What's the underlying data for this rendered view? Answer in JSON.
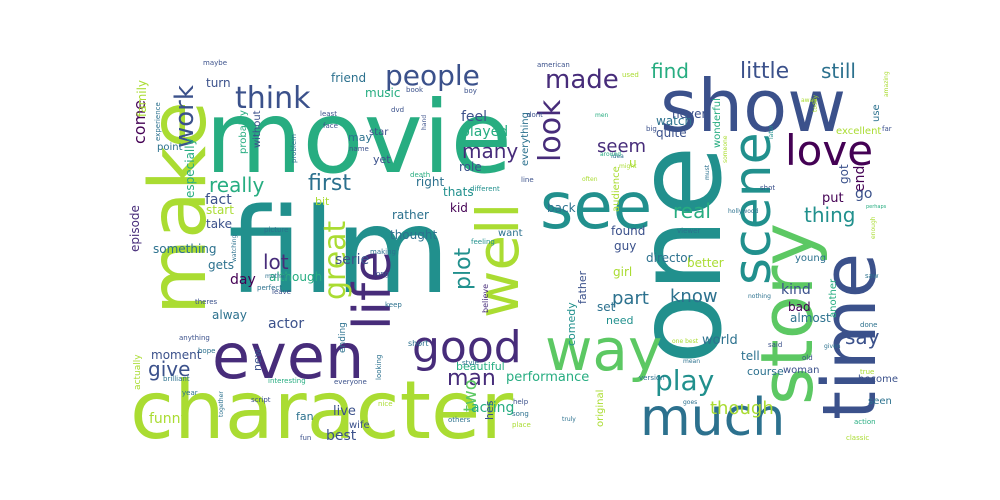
{
  "colors": {
    "c1": "#440154",
    "c2": "#472c7a",
    "c3": "#3b518b",
    "c4": "#2c718e",
    "c5": "#21908d",
    "c6": "#27ad81",
    "c7": "#5cc863",
    "c8": "#aadc32",
    "c9": "#fde725",
    "background": "#ffffff"
  },
  "words": [
    {
      "text": "movie"
    },
    {
      "text": "film"
    },
    {
      "text": "one"
    },
    {
      "text": "show"
    },
    {
      "text": "character"
    },
    {
      "text": "make"
    },
    {
      "text": "time"
    },
    {
      "text": "story"
    },
    {
      "text": "even"
    },
    {
      "text": "see"
    },
    {
      "text": "way"
    },
    {
      "text": "scene"
    },
    {
      "text": "much"
    },
    {
      "text": "well"
    },
    {
      "text": "life"
    },
    {
      "text": "love"
    },
    {
      "text": "good"
    },
    {
      "text": "people"
    },
    {
      "text": "think"
    },
    {
      "text": "made"
    },
    {
      "text": "look"
    },
    {
      "text": "great"
    },
    {
      "text": "work"
    },
    {
      "text": "play"
    },
    {
      "text": "little"
    },
    {
      "text": "really"
    },
    {
      "text": "still"
    },
    {
      "text": "first"
    },
    {
      "text": "find"
    },
    {
      "text": "many"
    },
    {
      "text": "seem"
    },
    {
      "text": "real"
    },
    {
      "text": "thing"
    },
    {
      "text": "lot"
    },
    {
      "text": "plot"
    },
    {
      "text": "know"
    },
    {
      "text": "part"
    },
    {
      "text": "say"
    },
    {
      "text": "give"
    },
    {
      "text": "man"
    },
    {
      "text": "two"
    },
    {
      "text": "though"
    },
    {
      "text": "end"
    },
    {
      "text": "come"
    },
    {
      "text": "fact"
    },
    {
      "text": "day"
    },
    {
      "text": "feel"
    },
    {
      "text": "played"
    },
    {
      "text": "serie"
    },
    {
      "text": "kind"
    },
    {
      "text": "actor"
    },
    {
      "text": "performance"
    },
    {
      "text": "acting"
    },
    {
      "text": "best"
    },
    {
      "text": "live"
    },
    {
      "text": "funny"
    },
    {
      "text": "world"
    },
    {
      "text": "go"
    },
    {
      "text": "got"
    },
    {
      "text": "put"
    },
    {
      "text": "music"
    },
    {
      "text": "friend"
    },
    {
      "text": "watch"
    },
    {
      "text": "quite"
    },
    {
      "text": "never"
    },
    {
      "text": "right"
    },
    {
      "text": "thats"
    },
    {
      "text": "role"
    },
    {
      "text": "rather"
    },
    {
      "text": "kid"
    },
    {
      "text": "back"
    },
    {
      "text": "take"
    },
    {
      "text": "although"
    },
    {
      "text": "alway"
    },
    {
      "text": "moment"
    },
    {
      "text": "episode"
    },
    {
      "text": "something"
    },
    {
      "text": "especially"
    },
    {
      "text": "turn"
    },
    {
      "text": "family"
    },
    {
      "text": "point"
    },
    {
      "text": "start"
    },
    {
      "text": "gets"
    },
    {
      "text": "thought"
    },
    {
      "text": "found"
    },
    {
      "text": "guy"
    },
    {
      "text": "director"
    },
    {
      "text": "better"
    },
    {
      "text": "girl"
    },
    {
      "text": "young"
    },
    {
      "text": "almost"
    },
    {
      "text": "bad"
    },
    {
      "text": "another"
    },
    {
      "text": "tell"
    },
    {
      "text": "course"
    },
    {
      "text": "woman"
    },
    {
      "text": "become"
    },
    {
      "text": "seen"
    },
    {
      "text": "set"
    },
    {
      "text": "need"
    },
    {
      "text": "father"
    },
    {
      "text": "comedy"
    },
    {
      "text": "beautiful"
    },
    {
      "text": "hes"
    },
    {
      "text": "original"
    },
    {
      "text": "new"
    },
    {
      "text": "fan"
    },
    {
      "text": "wife"
    },
    {
      "text": "bit"
    },
    {
      "text": "yet"
    },
    {
      "text": "may"
    },
    {
      "text": "star"
    },
    {
      "text": "without"
    },
    {
      "text": "probably"
    },
    {
      "text": "everything"
    },
    {
      "text": "audience"
    },
    {
      "text": "wonderful"
    },
    {
      "text": "excellent"
    },
    {
      "text": "use"
    },
    {
      "text": "want"
    },
    {
      "text": "actually"
    },
    {
      "text": "ending"
    },
    {
      "text": "believe"
    },
    {
      "text": "short"
    },
    {
      "text": "keep"
    },
    {
      "text": "long"
    },
    {
      "text": "making"
    },
    {
      "text": "feeling"
    },
    {
      "text": "line"
    },
    {
      "text": "different"
    },
    {
      "text": "death"
    },
    {
      "text": "name"
    },
    {
      "text": "problem"
    },
    {
      "text": "least"
    },
    {
      "text": "face"
    },
    {
      "text": "dvd"
    },
    {
      "text": "book"
    },
    {
      "text": "boy"
    },
    {
      "text": "american"
    },
    {
      "text": "dont"
    },
    {
      "text": "hand"
    },
    {
      "text": "maybe"
    },
    {
      "text": "experience"
    },
    {
      "text": "picture"
    },
    {
      "text": "mother"
    },
    {
      "text": "perfect"
    },
    {
      "text": "leave"
    },
    {
      "text": "theres"
    },
    {
      "text": "watching"
    },
    {
      "text": "hope"
    },
    {
      "text": "anything"
    },
    {
      "text": "brilliant"
    },
    {
      "text": "year"
    },
    {
      "text": "script"
    },
    {
      "text": "together"
    },
    {
      "text": "fun"
    },
    {
      "text": "interesting"
    },
    {
      "text": "everyone"
    },
    {
      "text": "nice"
    },
    {
      "text": "looking"
    },
    {
      "text": "style"
    },
    {
      "text": "others"
    },
    {
      "text": "help"
    },
    {
      "text": "song"
    },
    {
      "text": "place"
    },
    {
      "text": "truly"
    },
    {
      "text": "version"
    },
    {
      "text": "goes"
    },
    {
      "text": "said"
    },
    {
      "text": "old"
    },
    {
      "text": "given"
    },
    {
      "text": "true"
    },
    {
      "text": "nothing"
    },
    {
      "text": "done"
    },
    {
      "text": "saw"
    },
    {
      "text": "action"
    },
    {
      "text": "classic"
    },
    {
      "text": "shot"
    },
    {
      "text": "viewer"
    },
    {
      "text": "idea"
    },
    {
      "text": "might"
    },
    {
      "text": "later"
    },
    {
      "text": "must"
    },
    {
      "text": "someone"
    },
    {
      "text": "often"
    },
    {
      "text": "around"
    },
    {
      "text": "hollywood"
    },
    {
      "text": "enough"
    },
    {
      "text": "perhaps"
    },
    {
      "text": "today"
    },
    {
      "text": "far"
    },
    {
      "text": "used"
    },
    {
      "text": "big"
    },
    {
      "text": "amazing"
    },
    {
      "text": "away"
    },
    {
      "text": "men"
    },
    {
      "text": "mean"
    },
    {
      "text": "one best"
    },
    {
      "text": "u"
    }
  ]
}
